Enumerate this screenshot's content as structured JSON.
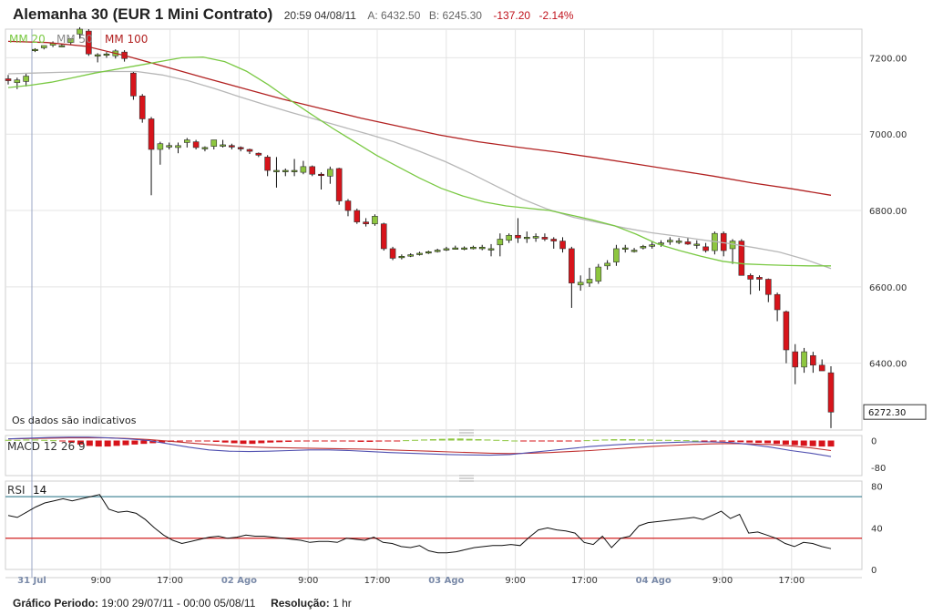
{
  "header": {
    "title": "Alemanha 30 (EUR 1 Mini Contrato)",
    "time": "20:59 04/08/11",
    "ask": "A: 6432.50",
    "bid": "B: 6245.30",
    "change": "-137.20",
    "change_pct": "-2.14%"
  },
  "footer": {
    "period_label": "Gráfico Periodo:",
    "period_value": "19:00 29/07/11 - 00:00 05/08/11",
    "resolution_label": "Resolução:",
    "resolution_value": "1 hr"
  },
  "colors": {
    "up": "#8dc63f",
    "down": "#d7141b",
    "ma20": "#7ac943",
    "ma50": "#b7b7b7",
    "ma100": "#b22222",
    "macd": "#5050b0",
    "signal": "#c03030",
    "rsi": "#111111",
    "rsi_upper": "#4a8a9a",
    "rsi_lower": "#d02020",
    "grid": "#e4e4e4"
  },
  "chart_data": {
    "type": "candlestick",
    "price_axis": {
      "ticks": [
        7200,
        7000,
        6800,
        6600,
        6400
      ],
      "tick_labels": [
        "7200.00",
        "7000.00",
        "6800.00",
        "6600.00",
        "6400.00"
      ],
      "range": [
        6225,
        7275
      ]
    },
    "current_price_label": "6272.30",
    "x_axis": {
      "tick_labels": [
        "31 Jul",
        "9:00",
        "17:00",
        "02 Ago",
        "9:00",
        "17:00",
        "03 Ago",
        "9:00",
        "17:00",
        "04 Ago",
        "9:00",
        "17:00"
      ],
      "major_labels": [
        "31 Jul",
        "02 Ago",
        "03 Ago",
        "04 Ago"
      ]
    },
    "note": "Os dados são indicativos",
    "legend": {
      "ma20": "MM 20",
      "ma50": "MM 50",
      "ma100": "MM 100"
    },
    "candles": [
      {
        "o": 7145,
        "h": 7155,
        "l": 7130,
        "c": 7140
      },
      {
        "o": 7135,
        "h": 7148,
        "l": 7118,
        "c": 7142
      },
      {
        "o": 7138,
        "h": 7160,
        "l": 7125,
        "c": 7152
      },
      {
        "o": 7222,
        "h": 7225,
        "l": 7215,
        "c": 7222
      },
      {
        "o": 7226,
        "h": 7232,
        "l": 7222,
        "c": 7232
      },
      {
        "o": 7233,
        "h": 7243,
        "l": 7228,
        "c": 7238
      },
      {
        "o": 7232,
        "h": 7236,
        "l": 7228,
        "c": 7232
      },
      {
        "o": 7240,
        "h": 7250,
        "l": 7235,
        "c": 7250
      },
      {
        "o": 7262,
        "h": 7280,
        "l": 7250,
        "c": 7275
      },
      {
        "o": 7270,
        "h": 7275,
        "l": 7205,
        "c": 7210
      },
      {
        "o": 7208,
        "h": 7212,
        "l": 7188,
        "c": 7208
      },
      {
        "o": 7210,
        "h": 7215,
        "l": 7200,
        "c": 7210
      },
      {
        "o": 7205,
        "h": 7222,
        "l": 7198,
        "c": 7218
      },
      {
        "o": 7215,
        "h": 7220,
        "l": 7190,
        "c": 7198
      },
      {
        "o": 7160,
        "h": 7165,
        "l": 7090,
        "c": 7100
      },
      {
        "o": 7100,
        "h": 7105,
        "l": 7030,
        "c": 7040
      },
      {
        "o": 7040,
        "h": 7045,
        "l": 6840,
        "c": 6960
      },
      {
        "o": 6960,
        "h": 6980,
        "l": 6920,
        "c": 6975
      },
      {
        "o": 6970,
        "h": 6978,
        "l": 6960,
        "c": 6970
      },
      {
        "o": 6965,
        "h": 6978,
        "l": 6950,
        "c": 6970
      },
      {
        "o": 6978,
        "h": 6990,
        "l": 6965,
        "c": 6985
      },
      {
        "o": 6980,
        "h": 6985,
        "l": 6960,
        "c": 6965
      },
      {
        "o": 6965,
        "h": 6968,
        "l": 6955,
        "c": 6965
      },
      {
        "o": 6968,
        "h": 6985,
        "l": 6960,
        "c": 6985
      },
      {
        "o": 6972,
        "h": 6985,
        "l": 6965,
        "c": 6972
      },
      {
        "o": 6970,
        "h": 6975,
        "l": 6960,
        "c": 6968
      },
      {
        "o": 6965,
        "h": 6968,
        "l": 6955,
        "c": 6962
      },
      {
        "o": 6960,
        "h": 6962,
        "l": 6948,
        "c": 6955
      },
      {
        "o": 6950,
        "h": 6952,
        "l": 6940,
        "c": 6945
      },
      {
        "o": 6940,
        "h": 6945,
        "l": 6890,
        "c": 6905
      },
      {
        "o": 6905,
        "h": 6940,
        "l": 6860,
        "c": 6905
      },
      {
        "o": 6905,
        "h": 6910,
        "l": 6890,
        "c": 6905
      },
      {
        "o": 6905,
        "h": 6935,
        "l": 6890,
        "c": 6905
      },
      {
        "o": 6900,
        "h": 6930,
        "l": 6895,
        "c": 6915
      },
      {
        "o": 6915,
        "h": 6918,
        "l": 6890,
        "c": 6895
      },
      {
        "o": 6895,
        "h": 6900,
        "l": 6855,
        "c": 6892
      },
      {
        "o": 6890,
        "h": 6915,
        "l": 6870,
        "c": 6908
      },
      {
        "o": 6910,
        "h": 6912,
        "l": 6815,
        "c": 6825
      },
      {
        "o": 6825,
        "h": 6830,
        "l": 6785,
        "c": 6800
      },
      {
        "o": 6800,
        "h": 6805,
        "l": 6765,
        "c": 6770
      },
      {
        "o": 6770,
        "h": 6780,
        "l": 6758,
        "c": 6765
      },
      {
        "o": 6765,
        "h": 6790,
        "l": 6760,
        "c": 6785
      },
      {
        "o": 6765,
        "h": 6768,
        "l": 6695,
        "c": 6700
      },
      {
        "o": 6700,
        "h": 6705,
        "l": 6670,
        "c": 6675
      },
      {
        "o": 6680,
        "h": 6685,
        "l": 6672,
        "c": 6680
      },
      {
        "o": 6682,
        "h": 6688,
        "l": 6678,
        "c": 6684
      },
      {
        "o": 6686,
        "h": 6692,
        "l": 6682,
        "c": 6688
      },
      {
        "o": 6690,
        "h": 6695,
        "l": 6686,
        "c": 6692
      },
      {
        "o": 6694,
        "h": 6700,
        "l": 6690,
        "c": 6696
      },
      {
        "o": 6698,
        "h": 6705,
        "l": 6694,
        "c": 6700
      },
      {
        "o": 6702,
        "h": 6708,
        "l": 6698,
        "c": 6702
      },
      {
        "o": 6700,
        "h": 6706,
        "l": 6696,
        "c": 6702
      },
      {
        "o": 6700,
        "h": 6708,
        "l": 6698,
        "c": 6704
      },
      {
        "o": 6700,
        "h": 6710,
        "l": 6696,
        "c": 6704
      },
      {
        "o": 6700,
        "h": 6712,
        "l": 6680,
        "c": 6700
      },
      {
        "o": 6710,
        "h": 6740,
        "l": 6680,
        "c": 6725
      },
      {
        "o": 6722,
        "h": 6740,
        "l": 6715,
        "c": 6735
      },
      {
        "o": 6735,
        "h": 6780,
        "l": 6715,
        "c": 6728
      },
      {
        "o": 6730,
        "h": 6745,
        "l": 6715,
        "c": 6730
      },
      {
        "o": 6728,
        "h": 6740,
        "l": 6718,
        "c": 6732
      },
      {
        "o": 6730,
        "h": 6740,
        "l": 6720,
        "c": 6725
      },
      {
        "o": 6725,
        "h": 6730,
        "l": 6700,
        "c": 6720
      },
      {
        "o": 6720,
        "h": 6730,
        "l": 6690,
        "c": 6700
      },
      {
        "o": 6700,
        "h": 6705,
        "l": 6545,
        "c": 6610
      },
      {
        "o": 6605,
        "h": 6630,
        "l": 6590,
        "c": 6612
      },
      {
        "o": 6610,
        "h": 6650,
        "l": 6600,
        "c": 6620
      },
      {
        "o": 6615,
        "h": 6660,
        "l": 6608,
        "c": 6652
      },
      {
        "o": 6655,
        "h": 6670,
        "l": 6645,
        "c": 6662
      },
      {
        "o": 6665,
        "h": 6710,
        "l": 6655,
        "c": 6700
      },
      {
        "o": 6700,
        "h": 6710,
        "l": 6690,
        "c": 6702
      },
      {
        "o": 6696,
        "h": 6702,
        "l": 6690,
        "c": 6696
      },
      {
        "o": 6702,
        "h": 6710,
        "l": 6698,
        "c": 6706
      },
      {
        "o": 6710,
        "h": 6720,
        "l": 6700,
        "c": 6710
      },
      {
        "o": 6712,
        "h": 6722,
        "l": 6705,
        "c": 6715
      },
      {
        "o": 6718,
        "h": 6730,
        "l": 6710,
        "c": 6722
      },
      {
        "o": 6720,
        "h": 6728,
        "l": 6712,
        "c": 6720
      },
      {
        "o": 6718,
        "h": 6728,
        "l": 6710,
        "c": 6712
      },
      {
        "o": 6712,
        "h": 6722,
        "l": 6700,
        "c": 6712
      },
      {
        "o": 6705,
        "h": 6715,
        "l": 6690,
        "c": 6695
      },
      {
        "o": 6695,
        "h": 6745,
        "l": 6685,
        "c": 6740
      },
      {
        "o": 6740,
        "h": 6745,
        "l": 6680,
        "c": 6695
      },
      {
        "o": 6700,
        "h": 6725,
        "l": 6660,
        "c": 6720
      },
      {
        "o": 6720,
        "h": 6725,
        "l": 6630,
        "c": 6630
      },
      {
        "o": 6630,
        "h": 6635,
        "l": 6580,
        "c": 6620
      },
      {
        "o": 6625,
        "h": 6630,
        "l": 6590,
        "c": 6620
      },
      {
        "o": 6620,
        "h": 6622,
        "l": 6560,
        "c": 6580
      },
      {
        "o": 6580,
        "h": 6585,
        "l": 6510,
        "c": 6540
      },
      {
        "o": 6535,
        "h": 6538,
        "l": 6400,
        "c": 6435
      },
      {
        "o": 6430,
        "h": 6450,
        "l": 6345,
        "c": 6390
      },
      {
        "o": 6390,
        "h": 6440,
        "l": 6375,
        "c": 6430
      },
      {
        "o": 6420,
        "h": 6430,
        "l": 6375,
        "c": 6395
      },
      {
        "o": 6395,
        "h": 6410,
        "l": 6380,
        "c": 6380
      },
      {
        "o": 6375,
        "h": 6392,
        "l": 6230,
        "c": 6272
      }
    ],
    "ma20": [
      7122,
      7128,
      7136,
      7148,
      7160,
      7170,
      7180,
      7190,
      7200,
      7202,
      7190,
      7165,
      7130,
      7090,
      7052,
      7015,
      6980,
      6945,
      6915,
      6885,
      6858,
      6838,
      6822,
      6812,
      6806,
      6800,
      6788,
      6775,
      6760,
      6738,
      6712,
      6695,
      6680,
      6667,
      6660,
      6658,
      6656,
      6655,
      6655
    ],
    "ma50": [
      7158,
      7160,
      7162,
      7163,
      7164,
      7164,
      7155,
      7140,
      7120,
      7098,
      7077,
      7057,
      7038,
      7019,
      7000,
      6980,
      6955,
      6928,
      6897,
      6863,
      6830,
      6803,
      6782,
      6768,
      6754,
      6742,
      6733,
      6723,
      6714,
      6703,
      6691,
      6672,
      6648
    ],
    "ma100": [
      7243,
      7240,
      7230,
      7205,
      7177,
      7148,
      7120,
      7092,
      7067,
      7042,
      7020,
      6998,
      6980,
      6966,
      6953,
      6938,
      6922,
      6906,
      6890,
      6872,
      6857,
      6840
    ],
    "macd_panel": {
      "label": "MACD 12 26 9",
      "ticks": [
        0,
        -80
      ],
      "tick_labels": [
        "0",
        "-80"
      ],
      "range": [
        -105,
        15
      ],
      "macd": [
        5,
        7,
        9,
        10,
        10,
        8,
        5,
        0,
        -10,
        -20,
        -28,
        -32,
        -33,
        -32,
        -30,
        -28,
        -28,
        -30,
        -33,
        -36,
        -38,
        -40,
        -42,
        -43,
        -44,
        -42,
        -36,
        -30,
        -24,
        -18,
        -14,
        -10,
        -8,
        -6,
        -4,
        -4,
        -6,
        -12,
        -20,
        -30,
        -38,
        -48
      ],
      "signal": [
        5,
        6,
        7,
        8,
        8,
        8,
        6,
        3,
        -2,
        -7,
        -12,
        -16,
        -19,
        -21,
        -22,
        -23,
        -24,
        -25,
        -26,
        -28,
        -30,
        -32,
        -34,
        -36,
        -38,
        -39,
        -38,
        -36,
        -33,
        -30,
        -26,
        -22,
        -18,
        -15,
        -12,
        -10,
        -9,
        -10,
        -12,
        -16,
        -22,
        -30
      ],
      "hist": [
        2,
        2,
        3,
        3,
        2,
        1,
        -2,
        -6,
        -12,
        -16,
        -18,
        -18,
        -16,
        -14,
        -12,
        -10,
        -8,
        -6,
        -4,
        -3,
        -2,
        -1,
        -2,
        -4,
        -6,
        -8,
        -10,
        -10,
        -8,
        -6,
        -5,
        -4,
        -3,
        -2,
        -1,
        -1,
        -1,
        -2,
        -3,
        -4,
        -4,
        -3,
        -2,
        -1,
        1,
        2,
        3,
        4,
        5,
        6,
        6,
        5,
        4,
        3,
        2,
        1,
        0,
        -1,
        -1,
        -2,
        -2,
        -3,
        -2,
        -1,
        1,
        2,
        3,
        4,
        4,
        4,
        3,
        3,
        2,
        2,
        1,
        1,
        0,
        -1,
        -2,
        -3,
        -4,
        -5,
        -6,
        -7,
        -8,
        -10,
        -12,
        -14,
        -16,
        -17,
        -18,
        -18
      ]
    },
    "rsi_panel": {
      "label": "RSI",
      "period": "14",
      "ticks": [
        80,
        40,
        0
      ],
      "tick_labels": [
        "80",
        "40",
        "0"
      ],
      "range": [
        0,
        85
      ],
      "upper_level": 70,
      "lower_level": 30,
      "values": [
        52,
        50,
        55,
        60,
        64,
        66,
        68,
        66,
        68,
        70,
        72,
        58,
        55,
        56,
        54,
        48,
        40,
        33,
        28,
        25,
        27,
        29,
        31,
        32,
        30,
        31,
        33,
        32,
        32,
        31,
        30,
        29,
        28,
        26,
        27,
        27,
        26,
        30,
        29,
        28,
        31,
        26,
        25,
        22,
        21,
        23,
        18,
        16,
        16,
        17,
        19,
        21,
        22,
        23,
        23,
        24,
        23,
        31,
        38,
        40,
        38,
        37,
        35,
        26,
        24,
        32,
        21,
        30,
        32,
        42,
        45,
        46,
        47,
        48,
        49,
        50,
        48,
        52,
        56,
        49,
        53,
        35,
        36,
        33,
        30,
        25,
        22,
        26,
        25,
        22,
        20
      ]
    }
  }
}
